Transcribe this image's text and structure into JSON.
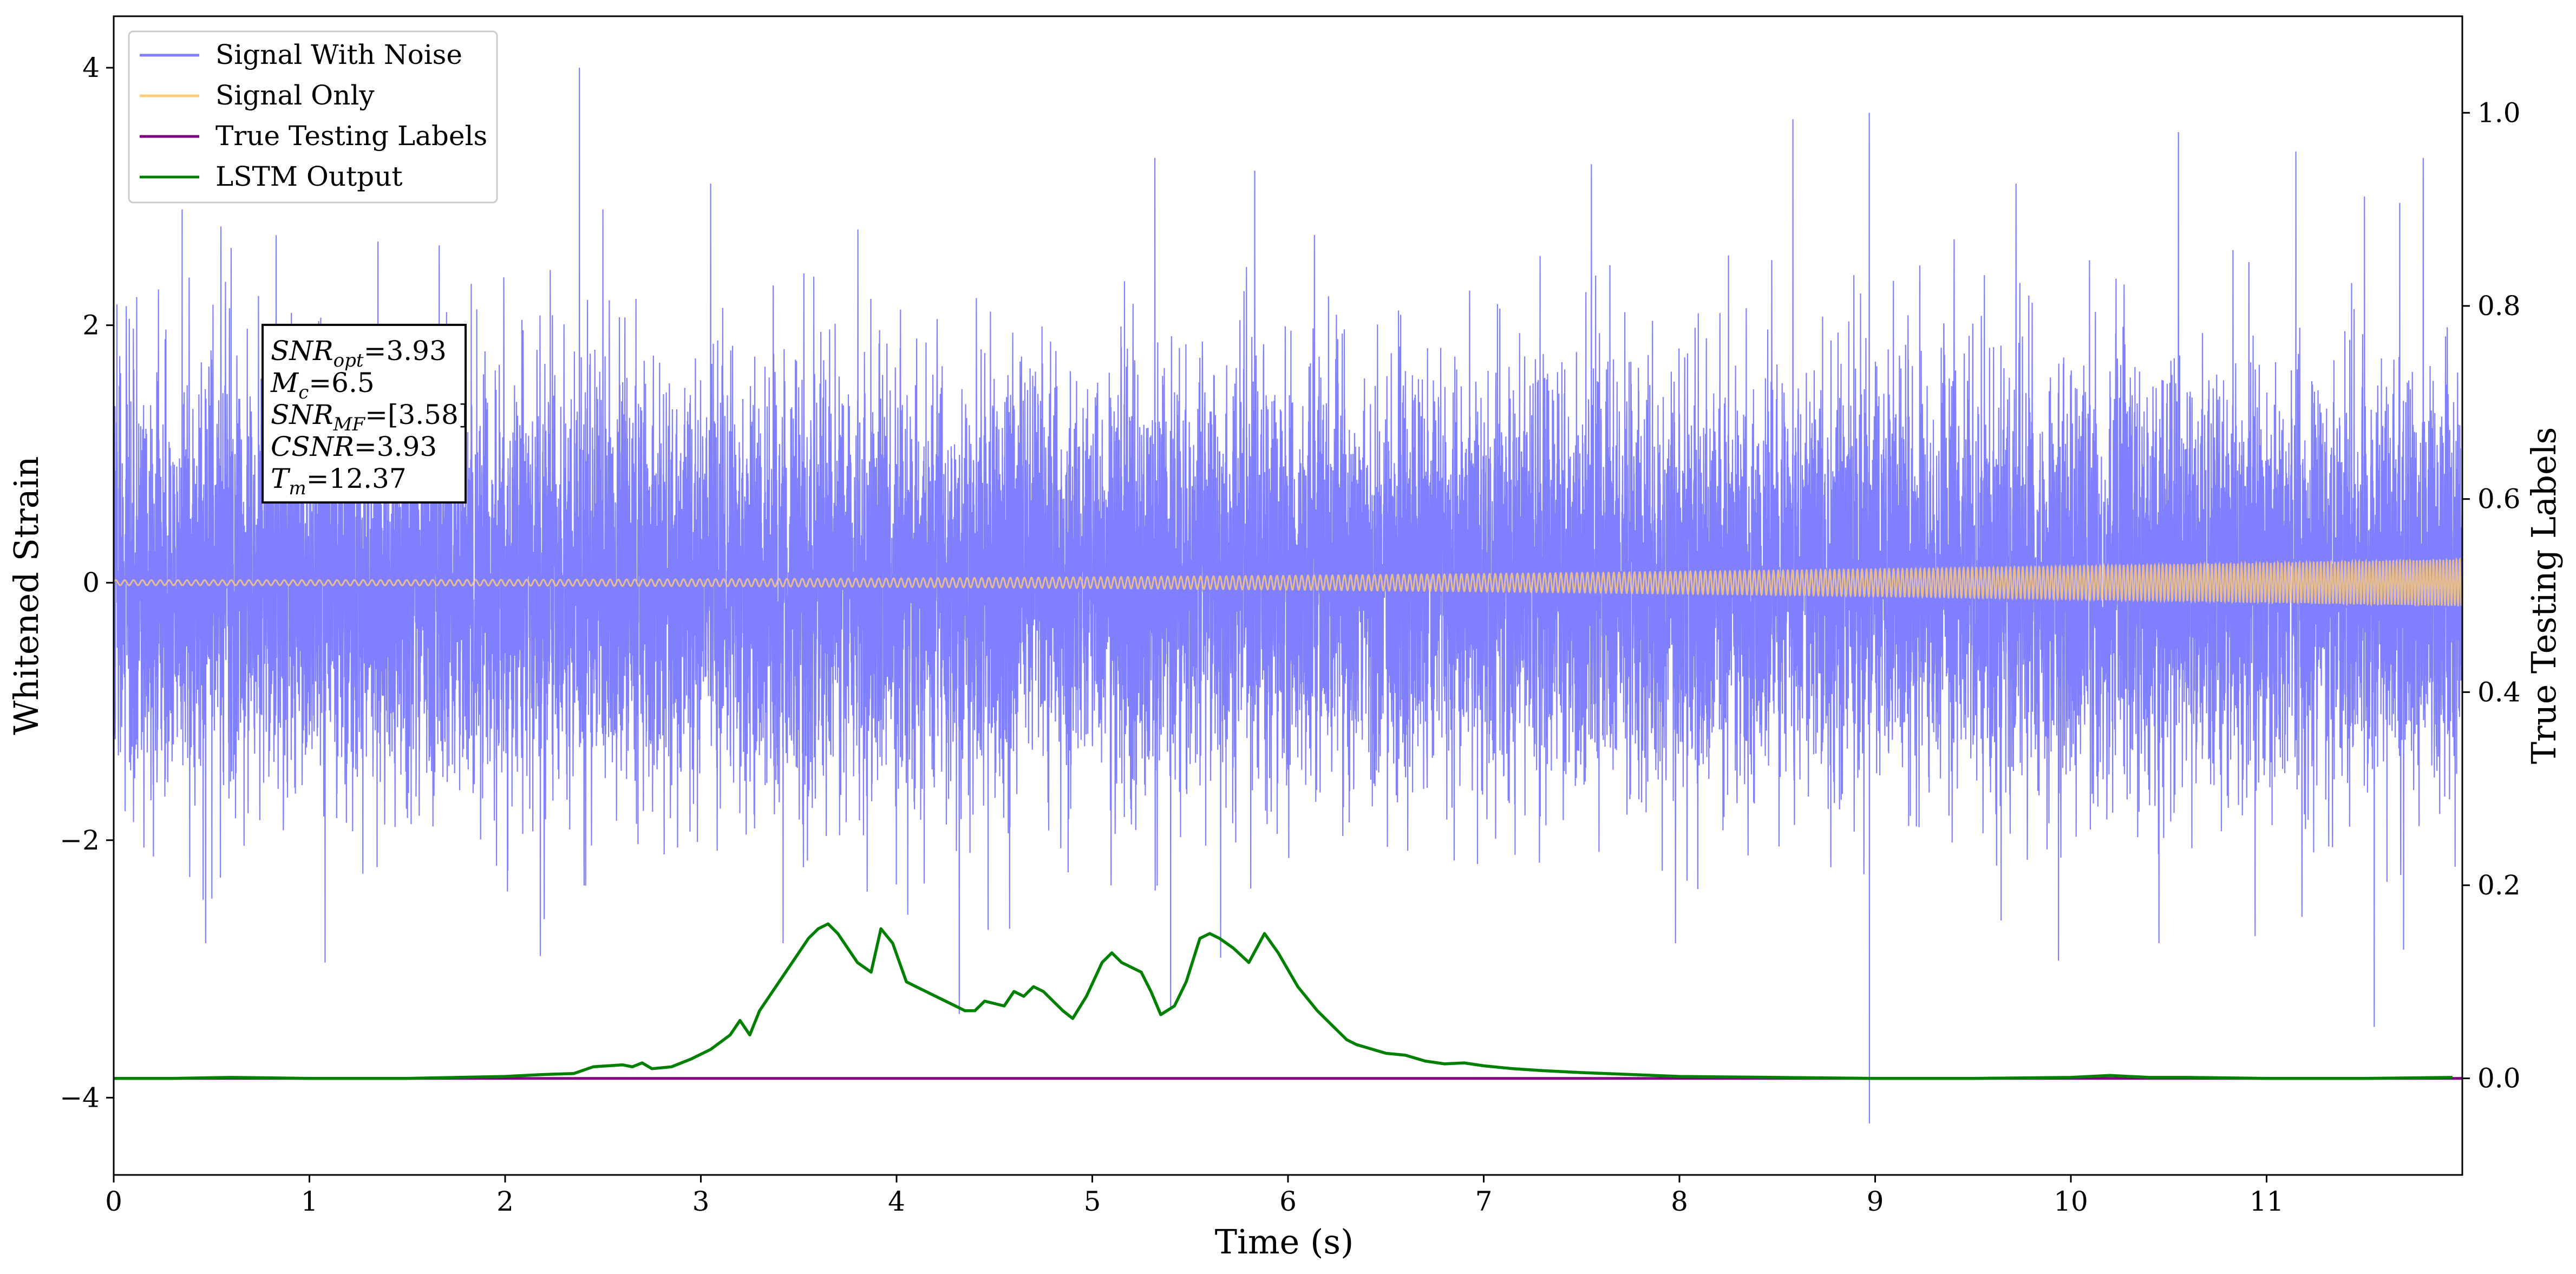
{
  "chart_data": {
    "type": "line",
    "title": "",
    "xlabel": "Time (s)",
    "ylabel": "Whitened Strain",
    "ylabel_right": "True Testing Labels",
    "xlim": [
      0,
      12
    ],
    "ylim": [
      -4.6,
      4.4
    ],
    "ylim_right": [
      -0.1,
      1.1
    ],
    "x_ticks": [
      0,
      1,
      2,
      3,
      4,
      5,
      6,
      7,
      8,
      9,
      10,
      11
    ],
    "y_ticks": [
      -4,
      -2,
      0,
      2,
      4
    ],
    "y_ticks_right": [
      0.0,
      0.2,
      0.4,
      0.6,
      0.8,
      1.0
    ],
    "grid": false,
    "legend_position": "top-left",
    "annotation": {
      "lines": [
        {
          "base": "SNR",
          "sub": "opt",
          "value": "=3.93"
        },
        {
          "base": "M",
          "sub": "c",
          "value": "=6.5"
        },
        {
          "base": "SNR",
          "sub": "MF",
          "value": "=[3.58]"
        },
        {
          "base": "CSNR",
          "sub": "",
          "value": "=3.93"
        },
        {
          "base": "T",
          "sub": "m",
          "value": "=12.37"
        }
      ]
    },
    "series": [
      {
        "name": "Signal With Noise",
        "axis": "left",
        "color": "#7f7fff",
        "description_envelope": "noise band mostly between -1.6 and +1.6",
        "noise_std": 0.8,
        "spikes": [
          {
            "x": 0.08,
            "y": 2.05
          },
          {
            "x": 0.35,
            "y": 2.9
          },
          {
            "x": 0.6,
            "y": 2.6
          },
          {
            "x": 0.83,
            "y": 2.7
          },
          {
            "x": 1.08,
            "y": -2.95
          },
          {
            "x": 1.35,
            "y": 2.65
          },
          {
            "x": 2.38,
            "y": 4.0
          },
          {
            "x": 2.5,
            "y": 2.9
          },
          {
            "x": 3.05,
            "y": 3.1
          },
          {
            "x": 3.42,
            "y": -2.8
          },
          {
            "x": 3.85,
            "y": -2.4
          },
          {
            "x": 4.32,
            "y": -3.35
          },
          {
            "x": 5.32,
            "y": 3.3
          },
          {
            "x": 5.4,
            "y": -3.3
          },
          {
            "x": 5.83,
            "y": 3.2
          },
          {
            "x": 7.55,
            "y": 3.25
          },
          {
            "x": 8.58,
            "y": 3.6
          },
          {
            "x": 8.97,
            "y": 3.65
          },
          {
            "x": 8.97,
            "y": -4.2
          },
          {
            "x": 9.72,
            "y": 3.1
          },
          {
            "x": 10.55,
            "y": 3.5
          },
          {
            "x": 11.15,
            "y": 3.35
          },
          {
            "x": 11.5,
            "y": 3.0
          },
          {
            "x": 11.68,
            "y": 2.95
          },
          {
            "x": 11.55,
            "y": -3.45
          },
          {
            "x": 11.7,
            "y": -2.85
          },
          {
            "x": 0.47,
            "y": -2.8
          },
          {
            "x": 2.18,
            "y": -2.9
          },
          {
            "x": 7.98,
            "y": -2.8
          },
          {
            "x": 10.45,
            "y": -2.8
          },
          {
            "x": 11.8,
            "y": 3.3
          }
        ]
      },
      {
        "name": "Signal Only",
        "axis": "left",
        "color": "#ffcc77",
        "amplitude_start": 0.02,
        "amplitude_end": 0.18,
        "frequency_start_hz": 22,
        "frequency_end_hz": 60
      },
      {
        "name": "True Testing Labels",
        "axis": "right",
        "color": "#800080",
        "x": [
          0,
          12
        ],
        "y": [
          0.0,
          0.0
        ]
      },
      {
        "name": "LSTM Output",
        "axis": "right",
        "color": "#008000",
        "x": [
          0.0,
          0.3,
          0.6,
          1.0,
          1.5,
          2.0,
          2.1,
          2.2,
          2.35,
          2.45,
          2.6,
          2.65,
          2.7,
          2.75,
          2.85,
          2.95,
          3.05,
          3.15,
          3.2,
          3.25,
          3.3,
          3.35,
          3.4,
          3.45,
          3.5,
          3.55,
          3.6,
          3.65,
          3.7,
          3.75,
          3.8,
          3.87,
          3.92,
          3.98,
          4.05,
          4.1,
          4.2,
          4.3,
          4.35,
          4.4,
          4.45,
          4.55,
          4.6,
          4.65,
          4.7,
          4.75,
          4.85,
          4.9,
          4.97,
          5.05,
          5.1,
          5.15,
          5.25,
          5.3,
          5.35,
          5.42,
          5.48,
          5.55,
          5.6,
          5.65,
          5.72,
          5.8,
          5.88,
          5.95,
          6.05,
          6.15,
          6.25,
          6.3,
          6.35,
          6.4,
          6.5,
          6.6,
          6.7,
          6.8,
          6.9,
          7.0,
          7.15,
          7.3,
          7.5,
          7.75,
          8.0,
          8.5,
          9.0,
          9.5,
          10.0,
          10.2,
          10.4,
          10.6,
          11.0,
          11.5,
          11.95
        ],
        "y": [
          0.0,
          0.0,
          0.001,
          0.0,
          0.0,
          0.002,
          0.003,
          0.004,
          0.005,
          0.012,
          0.014,
          0.012,
          0.016,
          0.01,
          0.012,
          0.02,
          0.03,
          0.045,
          0.06,
          0.045,
          0.07,
          0.085,
          0.1,
          0.115,
          0.13,
          0.145,
          0.155,
          0.16,
          0.15,
          0.135,
          0.12,
          0.11,
          0.155,
          0.14,
          0.1,
          0.095,
          0.085,
          0.075,
          0.07,
          0.07,
          0.08,
          0.075,
          0.09,
          0.085,
          0.095,
          0.09,
          0.07,
          0.062,
          0.085,
          0.12,
          0.13,
          0.12,
          0.11,
          0.09,
          0.066,
          0.075,
          0.1,
          0.145,
          0.15,
          0.145,
          0.135,
          0.12,
          0.15,
          0.13,
          0.095,
          0.07,
          0.05,
          0.04,
          0.035,
          0.032,
          0.026,
          0.024,
          0.018,
          0.015,
          0.016,
          0.013,
          0.01,
          0.008,
          0.006,
          0.004,
          0.002,
          0.001,
          0.0,
          0.0,
          0.001,
          0.003,
          0.001,
          0.001,
          0.0,
          0.0,
          0.001
        ]
      }
    ]
  }
}
